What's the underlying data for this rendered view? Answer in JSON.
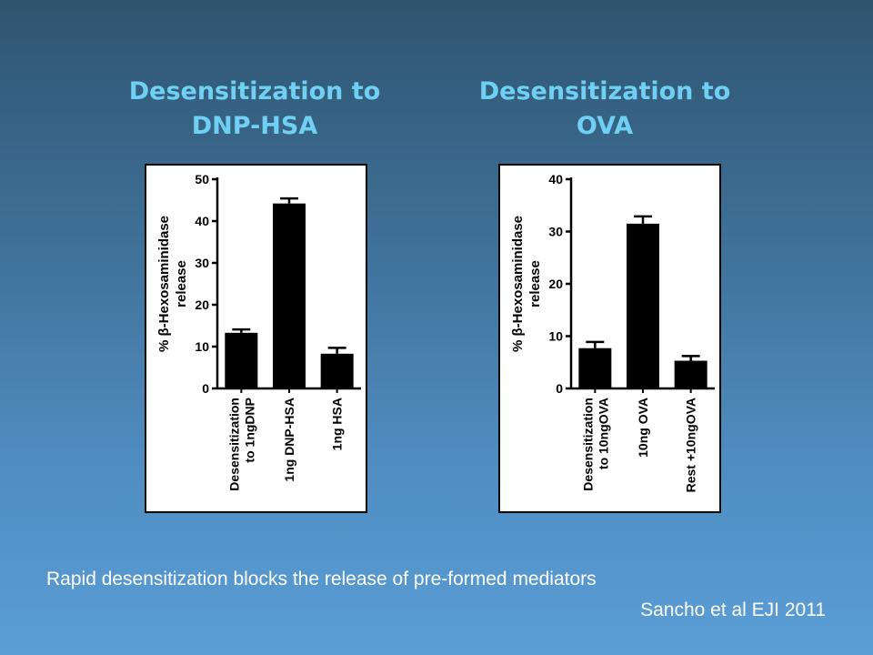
{
  "titles": {
    "left": "Desensitization to\nDNP-HSA",
    "right": "Desensitization to\nOVA"
  },
  "chart_data": [
    {
      "type": "bar",
      "title": "Desensitization to DNP-HSA",
      "ylabel": "% β-Hexosaminidase release",
      "ylim": [
        0,
        50
      ],
      "yticks": [
        0,
        10,
        20,
        30,
        40,
        50
      ],
      "categories": [
        "Desensitization to 1ngDNP",
        "1ng DNP-HSA",
        "1ng HSA"
      ],
      "category_lines": [
        [
          "Desensitization",
          "to 1ngDNP"
        ],
        [
          "1ng DNP-HSA"
        ],
        [
          "1ng HSA"
        ]
      ],
      "values": [
        13.3,
        44.2,
        8.3
      ],
      "errors": [
        0.8,
        1.2,
        1.4
      ],
      "bar_color": "#000000",
      "grid": false
    },
    {
      "type": "bar",
      "title": "Desensitization to OVA",
      "ylabel": "% β-Hexosaminidase release",
      "ylim": [
        0,
        40
      ],
      "yticks": [
        0,
        10,
        20,
        30,
        40
      ],
      "categories": [
        "Desensitization to 10ngOVA",
        "10ng OVA",
        "Rest +10ngOVA"
      ],
      "category_lines": [
        [
          "Desensitization",
          "to 10ngOVA"
        ],
        [
          "10ng OVA"
        ],
        [
          "Rest +10ngOVA"
        ]
      ],
      "values": [
        7.7,
        31.5,
        5.3
      ],
      "errors": [
        1.2,
        1.4,
        0.9
      ],
      "bar_color": "#000000",
      "grid": false
    }
  ],
  "caption": "Rapid desensitization blocks the release of pre-formed mediators",
  "citation": "Sancho et al EJI 2011"
}
